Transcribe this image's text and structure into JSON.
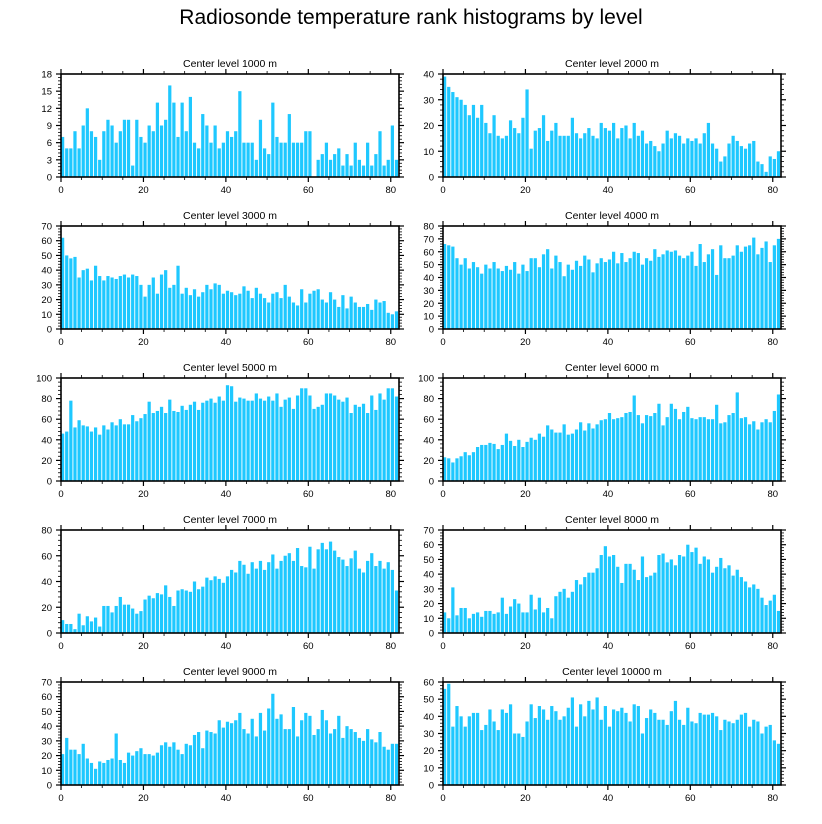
{
  "title": "Radiosonde temperature rank histograms by level",
  "colors": {
    "bar": "#1EC8FF",
    "axis": "#000000"
  },
  "chart_data": [
    {
      "type": "bar",
      "title": "Center level 1000 m",
      "ylim": [
        0,
        18
      ],
      "yticks": [
        0,
        3,
        6,
        9,
        12,
        15,
        18
      ],
      "xlim": [
        0,
        82
      ],
      "xticks": [
        0,
        20,
        40,
        60,
        80
      ],
      "values": [
        7,
        5,
        5,
        8,
        5,
        9,
        12,
        8,
        7,
        3,
        8,
        10,
        9,
        6,
        8,
        10,
        10,
        2,
        10,
        7,
        6,
        9,
        8,
        13,
        9,
        10,
        16,
        13,
        7,
        13,
        8,
        14,
        6,
        5,
        11,
        9,
        6,
        9,
        5,
        6,
        8,
        7,
        8,
        15,
        6,
        6,
        6,
        3,
        10,
        5,
        4,
        13,
        7,
        6,
        6,
        11,
        6,
        6,
        6,
        8,
        8,
        0,
        3,
        4,
        6,
        3,
        4,
        5,
        2,
        4,
        2,
        6,
        3,
        2,
        6,
        2,
        4,
        8,
        2,
        3,
        9,
        3
      ]
    },
    {
      "type": "bar",
      "title": "Center level 2000 m",
      "ylim": [
        0,
        40
      ],
      "yticks": [
        0,
        10,
        20,
        30,
        40
      ],
      "xlim": [
        0,
        82
      ],
      "xticks": [
        0,
        20,
        40,
        60,
        80
      ],
      "values": [
        39,
        35,
        33,
        31,
        30,
        28,
        24,
        28,
        23,
        28,
        21,
        17,
        24,
        16,
        15,
        16,
        22,
        19,
        17,
        23,
        34,
        11,
        18,
        19,
        24,
        14,
        18,
        21,
        16,
        16,
        16,
        23,
        17,
        15,
        17,
        19,
        16,
        15,
        21,
        19,
        18,
        21,
        15,
        19,
        20,
        15,
        21,
        16,
        18,
        13,
        14,
        12,
        10,
        13,
        18,
        15,
        17,
        16,
        13,
        15,
        14,
        15,
        13,
        17,
        21,
        13,
        11,
        6,
        8,
        13,
        16,
        14,
        12,
        11,
        13,
        14,
        6,
        5,
        2,
        8,
        7,
        10
      ]
    },
    {
      "type": "bar",
      "title": "Center level 3000 m",
      "ylim": [
        0,
        70
      ],
      "yticks": [
        0,
        10,
        20,
        30,
        40,
        50,
        60,
        70
      ],
      "xlim": [
        0,
        82
      ],
      "xticks": [
        0,
        20,
        40,
        60,
        80
      ],
      "values": [
        62,
        50,
        48,
        49,
        35,
        40,
        41,
        33,
        43,
        36,
        33,
        36,
        35,
        34,
        36,
        37,
        35,
        37,
        36,
        30,
        22,
        30,
        35,
        24,
        37,
        40,
        28,
        30,
        43,
        24,
        28,
        23,
        27,
        22,
        25,
        30,
        27,
        31,
        30,
        24,
        26,
        25,
        23,
        24,
        29,
        26,
        21,
        28,
        24,
        21,
        18,
        24,
        25,
        21,
        30,
        22,
        18,
        16,
        27,
        18,
        24,
        26,
        27,
        20,
        18,
        25,
        20,
        15,
        23,
        14,
        22,
        18,
        15,
        15,
        17,
        13,
        20,
        18,
        19,
        11,
        10,
        12
      ]
    },
    {
      "type": "bar",
      "title": "Center level 4000 m",
      "ylim": [
        0,
        80
      ],
      "yticks": [
        0,
        10,
        20,
        30,
        40,
        50,
        60,
        70,
        80
      ],
      "xlim": [
        0,
        82
      ],
      "xticks": [
        0,
        20,
        40,
        60,
        80
      ],
      "values": [
        66,
        65,
        64,
        55,
        50,
        55,
        47,
        52,
        48,
        43,
        50,
        47,
        52,
        47,
        45,
        49,
        46,
        52,
        43,
        50,
        45,
        55,
        55,
        48,
        58,
        62,
        47,
        57,
        52,
        41,
        50,
        46,
        53,
        49,
        57,
        54,
        44,
        51,
        55,
        52,
        54,
        60,
        51,
        59,
        52,
        55,
        60,
        59,
        50,
        55,
        53,
        62,
        56,
        58,
        61,
        60,
        61,
        57,
        55,
        57,
        60,
        49,
        66,
        52,
        58,
        62,
        42,
        65,
        55,
        55,
        57,
        65,
        60,
        64,
        65,
        71,
        58,
        63,
        68,
        52,
        65,
        70
      ]
    },
    {
      "type": "bar",
      "title": "Center level 5000 m",
      "ylim": [
        0,
        100
      ],
      "yticks": [
        0,
        20,
        40,
        60,
        80,
        100
      ],
      "xlim": [
        0,
        82
      ],
      "xticks": [
        0,
        20,
        40,
        60,
        80
      ],
      "values": [
        46,
        48,
        78,
        52,
        59,
        54,
        53,
        48,
        52,
        45,
        54,
        50,
        57,
        54,
        60,
        55,
        55,
        64,
        58,
        61,
        65,
        77,
        66,
        68,
        72,
        66,
        79,
        68,
        67,
        73,
        69,
        74,
        77,
        69,
        76,
        78,
        80,
        76,
        82,
        78,
        93,
        92,
        77,
        81,
        80,
        78,
        78,
        85,
        80,
        78,
        82,
        78,
        85,
        72,
        79,
        81,
        70,
        83,
        90,
        90,
        83,
        70,
        72,
        74,
        85,
        85,
        83,
        79,
        77,
        81,
        66,
        74,
        72,
        75,
        66,
        83,
        69,
        85,
        79,
        90,
        90,
        82
      ]
    },
    {
      "type": "bar",
      "title": "Center level 6000 m",
      "ylim": [
        0,
        100
      ],
      "yticks": [
        0,
        20,
        40,
        60,
        80,
        100
      ],
      "xlim": [
        0,
        82
      ],
      "xticks": [
        0,
        20,
        40,
        60,
        80
      ],
      "values": [
        23,
        22,
        18,
        22,
        24,
        28,
        25,
        28,
        33,
        35,
        35,
        37,
        36,
        31,
        35,
        46,
        39,
        34,
        40,
        33,
        38,
        42,
        40,
        46,
        43,
        54,
        50,
        47,
        47,
        55,
        45,
        46,
        50,
        57,
        49,
        56,
        51,
        55,
        59,
        60,
        66,
        60,
        61,
        62,
        66,
        67,
        83,
        64,
        56,
        64,
        63,
        66,
        75,
        54,
        62,
        75,
        70,
        60,
        67,
        72,
        61,
        60,
        62,
        62,
        60,
        60,
        74,
        56,
        57,
        64,
        66,
        86,
        61,
        62,
        55,
        58,
        50,
        57,
        60,
        57,
        68,
        84
      ]
    },
    {
      "type": "bar",
      "title": "Center level 7000 m",
      "ylim": [
        0,
        80
      ],
      "yticks": [
        0,
        20,
        40,
        60,
        80
      ],
      "xlim": [
        0,
        82
      ],
      "xticks": [
        0,
        20,
        40,
        60,
        80
      ],
      "values": [
        10,
        7,
        7,
        3,
        15,
        6,
        13,
        9,
        12,
        5,
        21,
        21,
        16,
        21,
        28,
        22,
        22,
        19,
        15,
        17,
        26,
        29,
        27,
        31,
        30,
        37,
        28,
        21,
        33,
        34,
        33,
        32,
        40,
        34,
        36,
        43,
        41,
        44,
        42,
        39,
        44,
        49,
        47,
        56,
        53,
        46,
        55,
        50,
        56,
        49,
        55,
        61,
        50,
        56,
        60,
        62,
        56,
        66,
        52,
        51,
        67,
        50,
        65,
        70,
        65,
        71,
        64,
        59,
        57,
        52,
        58,
        64,
        50,
        47,
        56,
        62,
        52,
        56,
        50,
        55,
        49,
        33
      ]
    },
    {
      "type": "bar",
      "title": "Center level 8000 m",
      "ylim": [
        0,
        70
      ],
      "yticks": [
        0,
        10,
        20,
        30,
        40,
        50,
        60,
        70
      ],
      "xlim": [
        0,
        82
      ],
      "xticks": [
        0,
        20,
        40,
        60,
        80
      ],
      "values": [
        14,
        10,
        31,
        12,
        17,
        17,
        10,
        13,
        14,
        11,
        15,
        15,
        13,
        14,
        24,
        13,
        18,
        23,
        20,
        14,
        14,
        26,
        16,
        24,
        14,
        17,
        10,
        25,
        28,
        30,
        24,
        28,
        36,
        33,
        38,
        41,
        41,
        44,
        53,
        59,
        52,
        53,
        45,
        34,
        47,
        47,
        43,
        36,
        52,
        38,
        39,
        41,
        53,
        54,
        48,
        50,
        46,
        53,
        52,
        60,
        55,
        58,
        47,
        52,
        50,
        41,
        45,
        51,
        44,
        46,
        39,
        43,
        38,
        35,
        31,
        33,
        30,
        24,
        19,
        22,
        26,
        15
      ]
    },
    {
      "type": "bar",
      "title": "Center level 9000 m",
      "ylim": [
        0,
        70
      ],
      "yticks": [
        0,
        10,
        20,
        30,
        40,
        50,
        60,
        70
      ],
      "xlim": [
        0,
        82
      ],
      "xticks": [
        0,
        20,
        40,
        60,
        80
      ],
      "values": [
        21,
        32,
        24,
        24,
        21,
        28,
        18,
        15,
        11,
        16,
        15,
        17,
        18,
        35,
        17,
        15,
        22,
        20,
        23,
        25,
        21,
        21,
        20,
        22,
        27,
        29,
        26,
        29,
        24,
        21,
        28,
        27,
        34,
        36,
        25,
        37,
        36,
        35,
        44,
        39,
        43,
        42,
        44,
        49,
        38,
        35,
        45,
        33,
        49,
        37,
        52,
        62,
        45,
        48,
        38,
        38,
        53,
        33,
        44,
        49,
        47,
        34,
        38,
        51,
        44,
        35,
        38,
        47,
        32,
        40,
        38,
        36,
        32,
        30,
        38,
        31,
        29,
        36,
        26,
        24,
        28,
        28
      ]
    },
    {
      "type": "bar",
      "title": "Center level 10000 m",
      "ylim": [
        0,
        60
      ],
      "yticks": [
        0,
        10,
        20,
        30,
        40,
        50,
        60
      ],
      "xlim": [
        0,
        82
      ],
      "xticks": [
        0,
        20,
        40,
        60,
        80
      ],
      "values": [
        56,
        59,
        34,
        46,
        40,
        34,
        40,
        42,
        42,
        32,
        35,
        44,
        37,
        32,
        44,
        42,
        47,
        30,
        30,
        28,
        37,
        47,
        39,
        46,
        44,
        38,
        46,
        43,
        38,
        40,
        45,
        51,
        34,
        47,
        40,
        49,
        44,
        51,
        38,
        46,
        34,
        44,
        43,
        45,
        42,
        37,
        47,
        46,
        30,
        39,
        44,
        42,
        38,
        38,
        35,
        43,
        49,
        38,
        35,
        45,
        37,
        36,
        42,
        41,
        41,
        42,
        40,
        32,
        38,
        37,
        36,
        38,
        41,
        42,
        34,
        38,
        37,
        30,
        34,
        35,
        26,
        24
      ]
    }
  ]
}
